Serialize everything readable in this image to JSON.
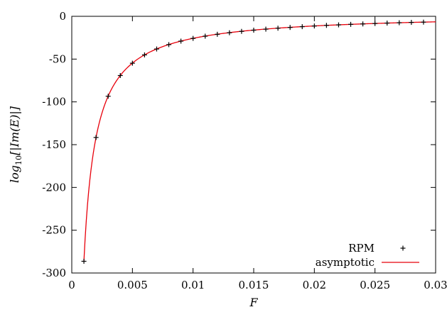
{
  "chart_data": {
    "type": "line",
    "xlabel": "F",
    "ylabel_main": "log",
    "ylabel_sub": "10",
    "ylabel_rest": "[|Im(E)|]",
    "xlim": [
      0,
      0.03
    ],
    "ylim": [
      -300,
      0
    ],
    "xticks": [
      0,
      0.005,
      0.01,
      0.015,
      0.02,
      0.025,
      0.03
    ],
    "xtick_labels": [
      "0",
      "0.005",
      "0.01",
      "0.015",
      "0.02",
      "0.025",
      "0.03"
    ],
    "yticks": [
      0,
      -50,
      -100,
      -150,
      -200,
      -250,
      -300
    ],
    "ytick_labels": [
      "0",
      "-50",
      "-100",
      "-150",
      "-200",
      "-250",
      "-300"
    ],
    "grid": false,
    "legend_position": "bottom-right",
    "series": [
      {
        "name": "RPM",
        "style": "points",
        "marker": "+",
        "color": "#000000",
        "x": [
          0.001,
          0.002,
          0.003,
          0.004,
          0.005,
          0.006,
          0.007,
          0.008,
          0.009,
          0.01,
          0.011,
          0.012,
          0.013,
          0.014,
          0.015,
          0.016,
          0.017,
          0.018,
          0.019,
          0.02,
          0.021,
          0.022,
          0.023,
          0.024,
          0.025,
          0.026,
          0.027,
          0.028,
          0.029
        ],
        "y": [
          -286.3,
          -141.6,
          -93.4,
          -69.2,
          -54.8,
          -45.1,
          -38.2,
          -33.1,
          -29.0,
          -25.8,
          -23.2,
          -21.0,
          -19.2,
          -17.6,
          -16.2,
          -15.0,
          -13.9,
          -13.0,
          -12.1,
          -11.3,
          -10.6,
          -10.0,
          -9.4,
          -8.9,
          -8.4,
          -7.9,
          -7.5,
          -7.1,
          -6.8
        ]
      },
      {
        "name": "asymptotic",
        "style": "line",
        "color": "#e8000b",
        "formula_coefficients": {
          "a": -0.2894,
          "b": 3.2
        },
        "x_range": [
          0.001,
          0.03
        ]
      }
    ]
  }
}
